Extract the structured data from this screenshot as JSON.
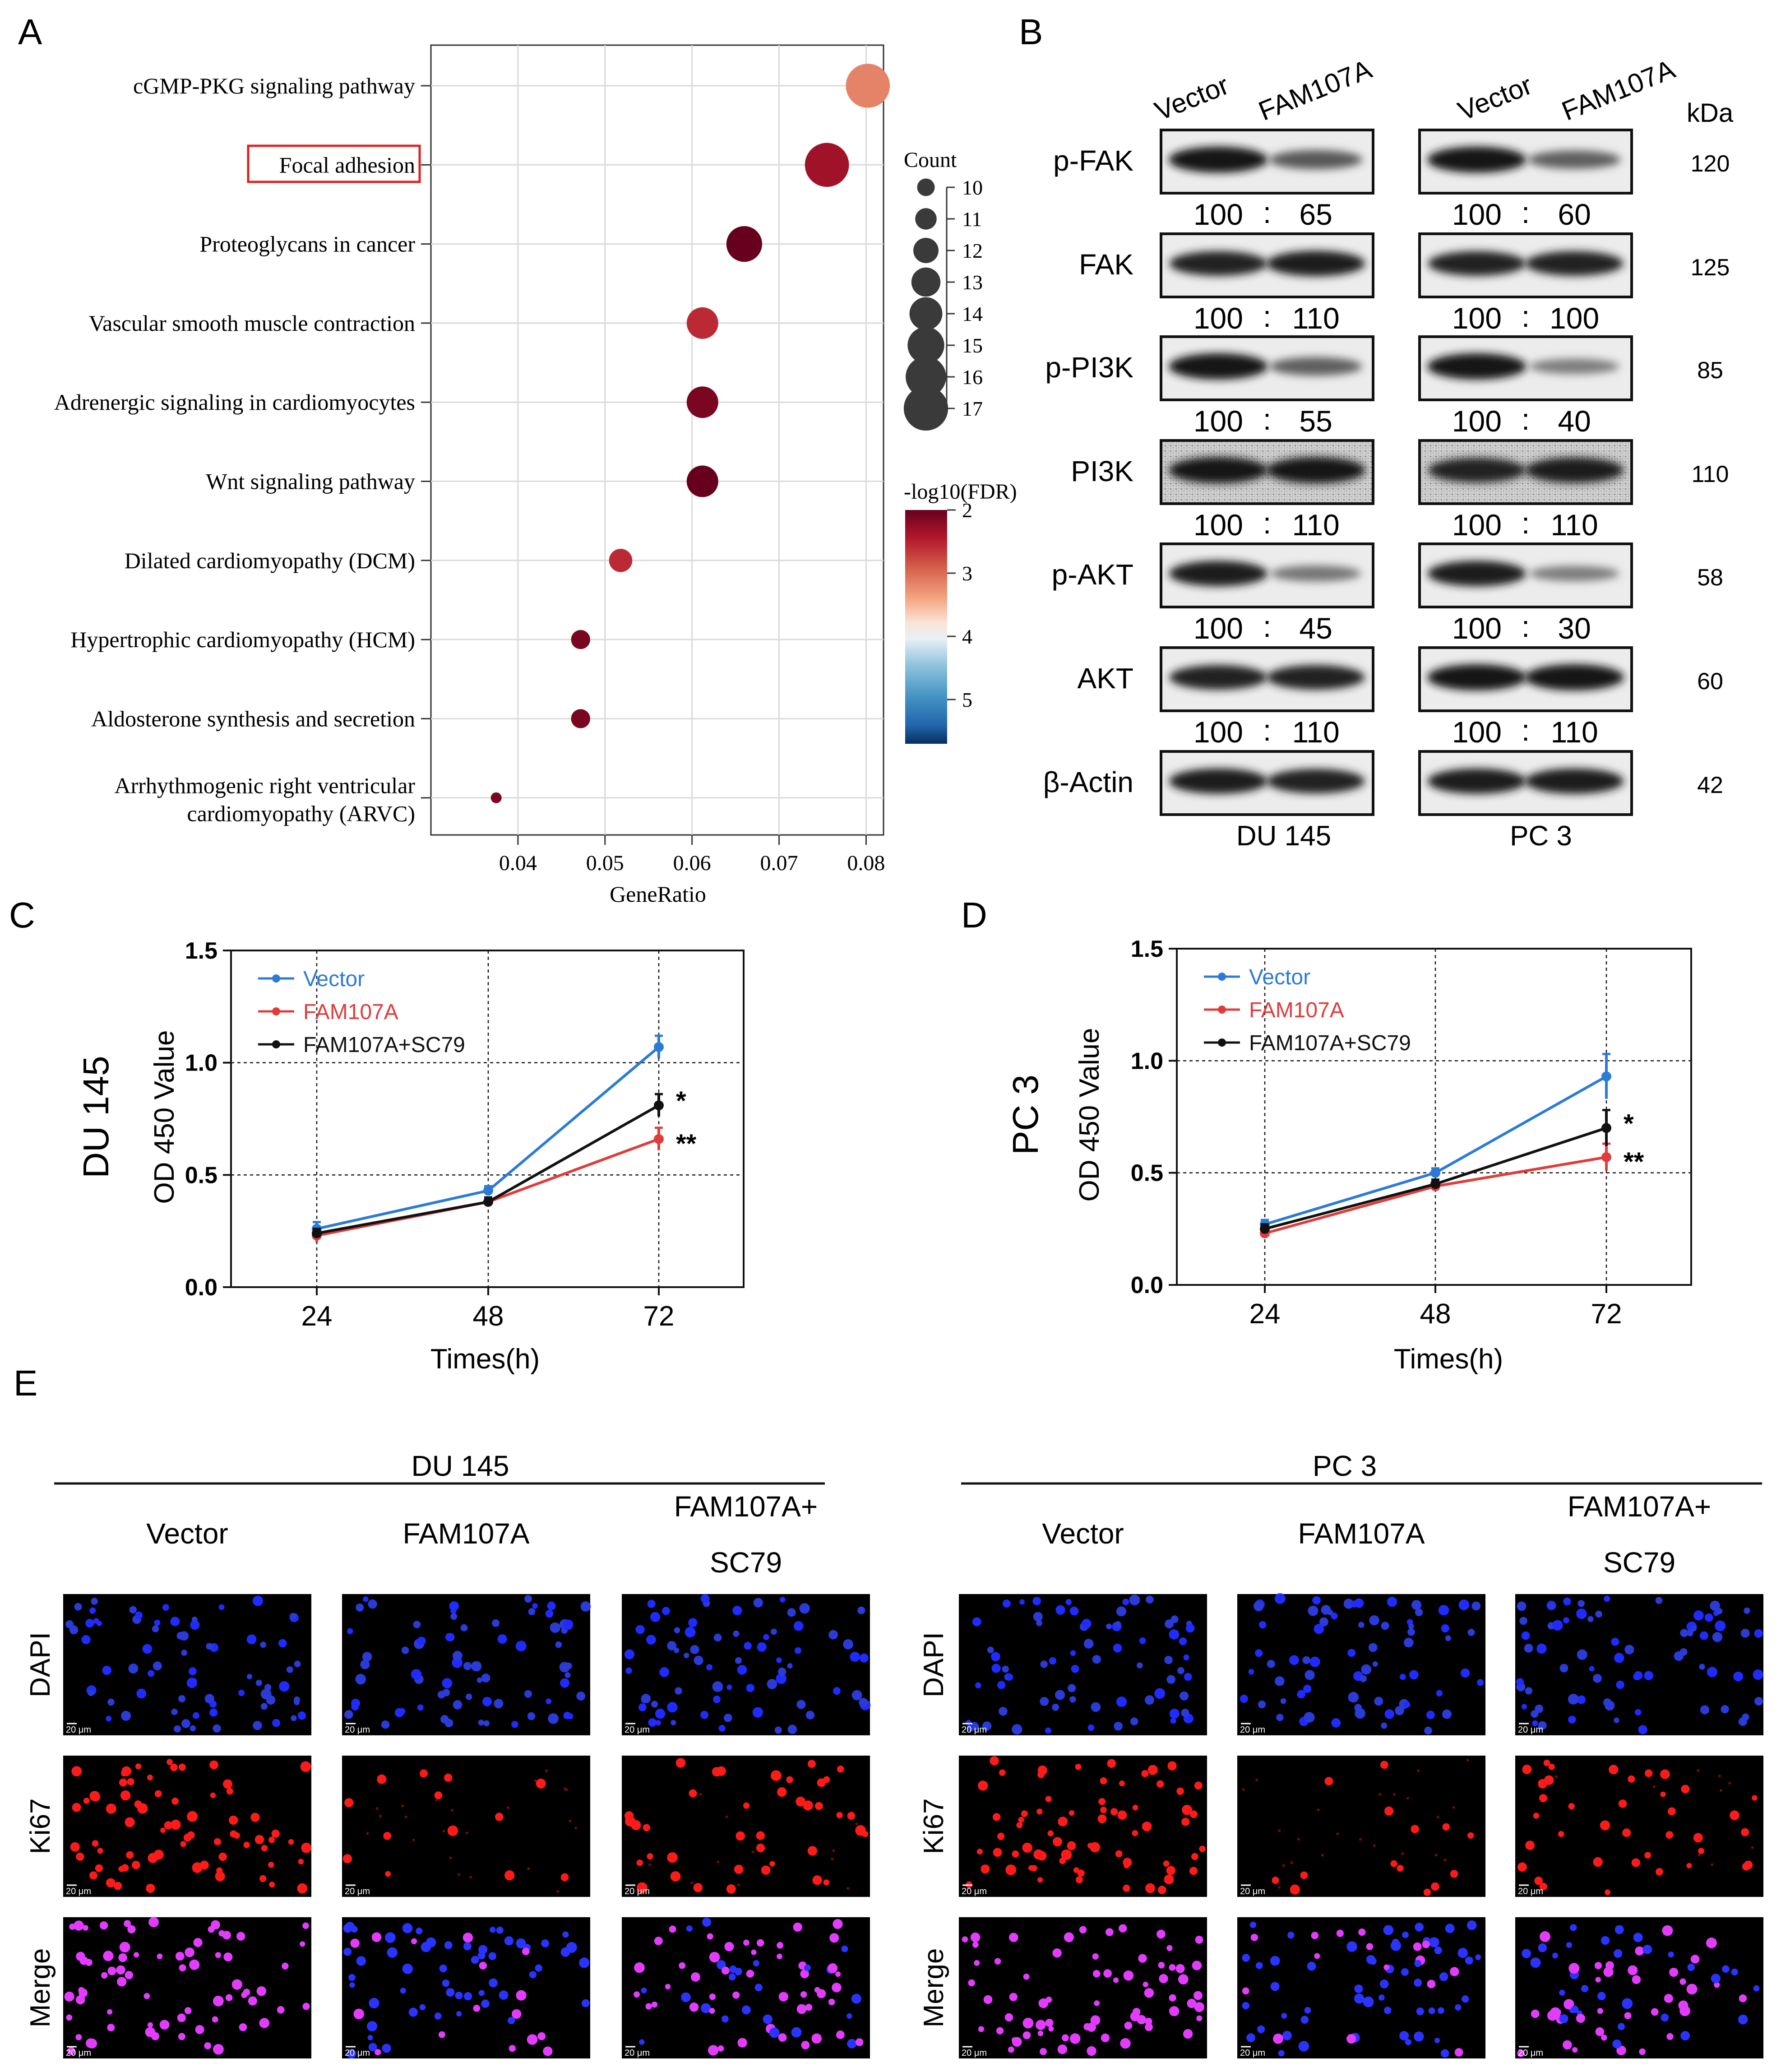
{
  "panels": {
    "a": {
      "letter": "A",
      "chart_data": {
        "type": "scatter",
        "xlabel": "GeneRatio",
        "ylabel": "",
        "xlim": [
          0.03,
          0.082
        ],
        "xticks": [
          "0.04",
          "0.05",
          "0.06",
          "0.07",
          "0.08"
        ],
        "xtick_values": [
          0.04,
          0.05,
          0.06,
          0.07,
          0.08
        ],
        "highlighted": "Focal adhesion",
        "points": [
          {
            "term": "cGMP-PKG signaling pathway",
            "term_line2": "",
            "x": 0.0802,
            "count": 16,
            "fdr": 3.0
          },
          {
            "term": "Focal adhesion",
            "term_line2": "",
            "x": 0.0755,
            "count": 16,
            "fdr": 2.3
          },
          {
            "term": "Proteoglycans in cancer",
            "term_line2": "",
            "x": 0.066,
            "count": 14,
            "fdr": 2.0
          },
          {
            "term": "Vascular smooth muscle contraction",
            "term_line2": "",
            "x": 0.0612,
            "count": 13,
            "fdr": 2.5
          },
          {
            "term": "Adrenergic signaling in cardiomyocytes",
            "term_line2": "",
            "x": 0.0612,
            "count": 13,
            "fdr": 2.1
          },
          {
            "term": "Wnt signaling pathway",
            "term_line2": "",
            "x": 0.0612,
            "count": 13,
            "fdr": 2.0
          },
          {
            "term": "Dilated cardiomyopathy (DCM)",
            "term_line2": "",
            "x": 0.0518,
            "count": 11,
            "fdr": 2.5
          },
          {
            "term": "Hypertrophic cardiomyopathy (HCM)",
            "term_line2": "",
            "x": 0.0472,
            "count": 10,
            "fdr": 2.1
          },
          {
            "term": "Aldosterone synthesis and secretion",
            "term_line2": "",
            "x": 0.0472,
            "count": 10,
            "fdr": 2.1
          },
          {
            "term": "Arrhythmogenic right ventricular",
            "term_line2": "cardiomyopathy (ARVC)",
            "x": 0.0375,
            "count": 8,
            "fdr": 2.1
          }
        ],
        "size_legend": {
          "title": "Count",
          "values": [
            "10",
            "11",
            "12",
            "13",
            "14",
            "15",
            "16",
            "17"
          ]
        },
        "color_legend": {
          "title": "-log10(FDR)",
          "ticks": [
            "2",
            "3",
            "4",
            "5"
          ],
          "range": [
            2,
            5.7
          ]
        }
      }
    },
    "b": {
      "letter": "B",
      "lanes": [
        "Vector",
        "FAM107A",
        "Vector",
        "FAM107A"
      ],
      "kda_label": "kDa",
      "cell_lines": [
        "DU 145",
        "PC 3"
      ],
      "rows": [
        {
          "label": "p-FAK",
          "kda": "120",
          "du": [
            "100",
            "65"
          ],
          "pc": [
            "100",
            "60"
          ],
          "intensity": [
            [
              1.0,
              0.55
            ],
            [
              1.0,
              0.5
            ]
          ],
          "noise": false
        },
        {
          "label": "FAK",
          "kda": "125",
          "du": [
            "100",
            "110"
          ],
          "pc": [
            "100",
            "100"
          ],
          "intensity": [
            [
              0.9,
              0.95
            ],
            [
              0.9,
              0.9
            ]
          ],
          "noise": false
        },
        {
          "label": "p-PI3K",
          "kda": "85",
          "du": [
            "100",
            "55"
          ],
          "pc": [
            "100",
            "40"
          ],
          "intensity": [
            [
              1.0,
              0.5
            ],
            [
              1.0,
              0.3
            ]
          ],
          "noise": false
        },
        {
          "label": "PI3K",
          "kda": "110",
          "du": [
            "100",
            "110"
          ],
          "pc": [
            "100",
            "110"
          ],
          "intensity": [
            [
              1.0,
              1.0
            ],
            [
              0.9,
              0.95
            ]
          ],
          "noise": true
        },
        {
          "label": "p-AKT",
          "kda": "58",
          "du": [
            "100",
            "45"
          ],
          "pc": [
            "100",
            "30"
          ],
          "intensity": [
            [
              0.95,
              0.35
            ],
            [
              0.95,
              0.3
            ]
          ],
          "noise": false
        },
        {
          "label": "AKT",
          "kda": "60",
          "du": [
            "100",
            "110"
          ],
          "pc": [
            "100",
            "110"
          ],
          "intensity": [
            [
              0.9,
              0.9
            ],
            [
              1.0,
              1.0
            ]
          ],
          "noise": false
        },
        {
          "label": "β-Actin",
          "kda": "42",
          "du": null,
          "pc": null,
          "intensity": [
            [
              0.95,
              0.9
            ],
            [
              0.95,
              0.95
            ]
          ],
          "noise": false
        }
      ]
    },
    "c": {
      "letter": "C",
      "chart_data": {
        "type": "line",
        "title": "DU 145",
        "xlabel": "Times(h)",
        "ylabel": "OD 450 Value",
        "x": [
          24,
          48,
          72
        ],
        "xticks": [
          "24",
          "48",
          "72"
        ],
        "ylim": [
          0,
          1.5
        ],
        "yticks": [
          "0.0",
          "0.5",
          "1.0",
          "1.5"
        ],
        "series": [
          {
            "name": "Vector",
            "color": "#2b7bd6",
            "values": [
              0.26,
              0.43,
              1.07
            ],
            "err": [
              0.03,
              0.02,
              0.05
            ]
          },
          {
            "name": "FAM107A",
            "color": "#e03c3c",
            "values": [
              0.23,
              0.38,
              0.66
            ],
            "err": [
              0.03,
              0.02,
              0.05
            ]
          },
          {
            "name": "FAM107A+SC79",
            "color": "#111111",
            "values": [
              0.24,
              0.38,
              0.81
            ],
            "err": [
              0.02,
              0.02,
              0.05
            ]
          }
        ],
        "annotations": [
          "*",
          "**"
        ]
      }
    },
    "d": {
      "letter": "D",
      "chart_data": {
        "type": "line",
        "title": "PC 3",
        "xlabel": "Times(h)",
        "ylabel": "OD 450 Value",
        "x": [
          24,
          48,
          72
        ],
        "xticks": [
          "24",
          "48",
          "72"
        ],
        "ylim": [
          0,
          1.5
        ],
        "yticks": [
          "0.0",
          "0.5",
          "1.0",
          "1.5"
        ],
        "series": [
          {
            "name": "Vector",
            "color": "#2b7bd6",
            "values": [
              0.27,
              0.5,
              0.93
            ],
            "err": [
              0.02,
              0.02,
              0.1
            ]
          },
          {
            "name": "FAM107A",
            "color": "#e03c3c",
            "values": [
              0.23,
              0.44,
              0.57
            ],
            "err": [
              0.02,
              0.02,
              0.06
            ]
          },
          {
            "name": "FAM107A+SC79",
            "color": "#111111",
            "values": [
              0.25,
              0.45,
              0.7
            ],
            "err": [
              0.02,
              0.02,
              0.08
            ]
          }
        ],
        "annotations": [
          "*",
          "**"
        ]
      }
    },
    "e": {
      "letter": "E",
      "groups": [
        {
          "title": "DU 145",
          "columns": [
            [
              "Vector"
            ],
            [
              "FAM107A"
            ],
            [
              "FAM107A+",
              "SC79"
            ]
          ]
        },
        {
          "title": "PC 3",
          "columns": [
            [
              "Vector"
            ],
            [
              "FAM107A"
            ],
            [
              "FAM107A+",
              "SC79"
            ]
          ]
        }
      ],
      "row_labels": [
        "DAPI",
        "Ki67",
        "Merge"
      ],
      "scale_bar": "20 μm",
      "ki67_density": [
        [
          1.0,
          0.25,
          0.6
        ],
        [
          1.0,
          0.2,
          0.6
        ]
      ]
    }
  }
}
